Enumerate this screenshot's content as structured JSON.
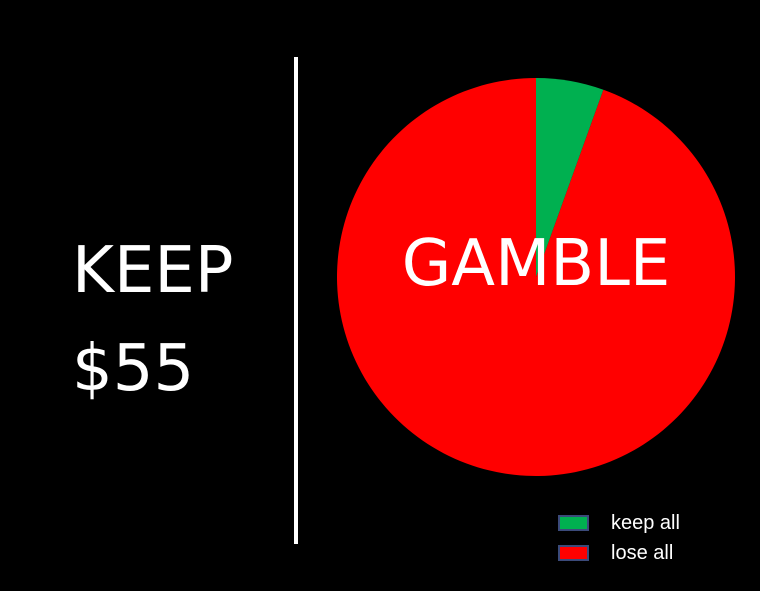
{
  "keep_option": {
    "line1": "KEEP",
    "line2": "$55"
  },
  "gamble_label": "GAMBLE",
  "chart_data": {
    "type": "pie",
    "title": "",
    "categories": [
      "keep all",
      "lose all"
    ],
    "values": [
      5.5,
      94.5
    ],
    "colors": [
      "#00b050",
      "#ff0000"
    ],
    "legend": "bottom-right",
    "start_angle": "12 o'clock, clockwise"
  },
  "legend": {
    "items": [
      {
        "label": "keep all",
        "color": "#00b050"
      },
      {
        "label": "lose all",
        "color": "#ff0000"
      }
    ]
  }
}
